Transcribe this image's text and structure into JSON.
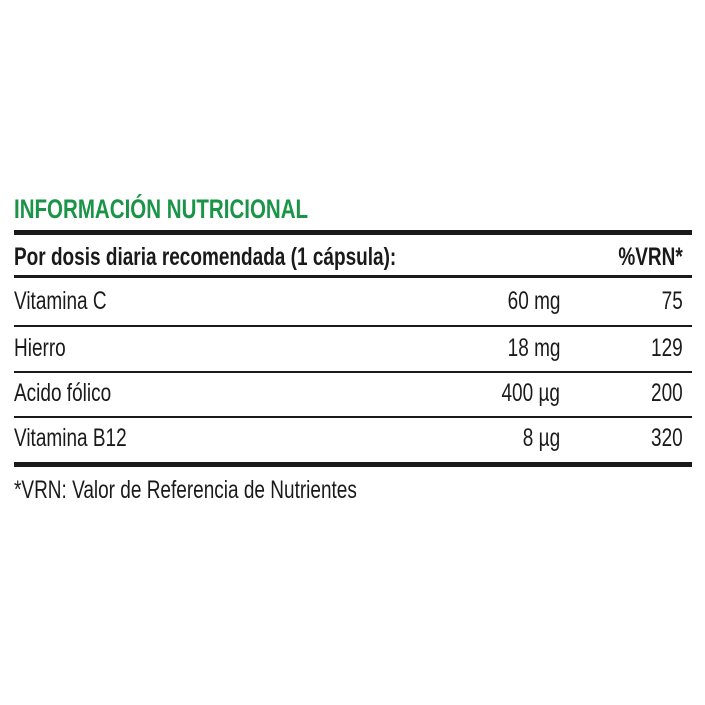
{
  "title": "INFORMACIÓN NUTRICIONAL",
  "header": {
    "label": "Por dosis diaria recomendada (1 cápsula):",
    "vrn": "%VRN*"
  },
  "rows": [
    {
      "name": "Vitamina C",
      "amount": "60 mg",
      "vrn": "75"
    },
    {
      "name": "Hierro",
      "amount": "18 mg",
      "vrn": "129"
    },
    {
      "name": "Acido fólico",
      "amount": "400 µg",
      "vrn": "200"
    },
    {
      "name": "Vitamina B12",
      "amount": "8 µg",
      "vrn": "320"
    }
  ],
  "footnote": "*VRN: Valor de Referencia de Nutrientes",
  "colors": {
    "title": "#1a9446",
    "text": "#1a1a1a"
  }
}
